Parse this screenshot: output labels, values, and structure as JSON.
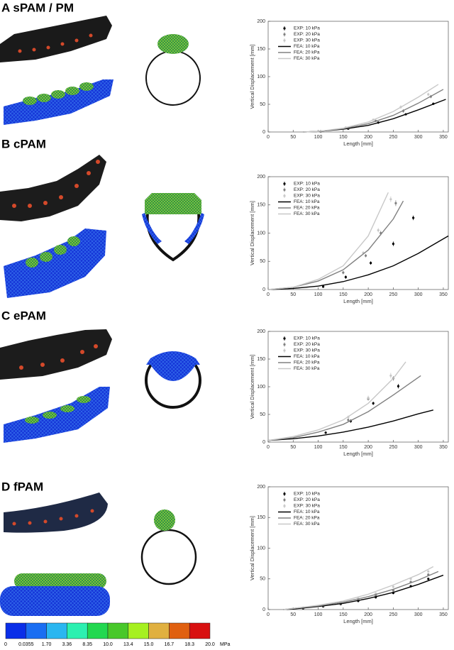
{
  "chart_data": [
    {
      "type": "line",
      "title": "A  sPAM / PM",
      "xlabel": "Length [mm]",
      "ylabel": "Vertical Displacement [mm]",
      "xlim": [
        0,
        360
      ],
      "ylim": [
        0,
        200
      ],
      "xticks": [
        0,
        50,
        100,
        150,
        200,
        250,
        300,
        350
      ],
      "yticks": [
        0,
        50,
        100,
        150,
        200
      ],
      "legend": "upper left",
      "series": [
        {
          "name": "EXP: 10 kPa",
          "color": "#000000",
          "x": [
            105,
            160,
            220,
            275,
            330
          ],
          "values": [
            1,
            6,
            17,
            32,
            51
          ],
          "errors": [
            1,
            1,
            2,
            2,
            2
          ]
        },
        {
          "name": "EXP: 20 kPa",
          "color": "#808080",
          "x": [
            105,
            160,
            215,
            270,
            325
          ],
          "values": [
            1,
            7,
            20,
            38,
            64
          ],
          "errors": [
            1,
            1,
            2,
            3,
            3
          ]
        },
        {
          "name": "EXP: 30 kPa",
          "color": "#c8c8c8",
          "x": [
            100,
            155,
            210,
            265,
            320
          ],
          "values": [
            1,
            8,
            22,
            45,
            68
          ],
          "errors": [
            1,
            1,
            2,
            3,
            3
          ]
        },
        {
          "name": "FEA: 10 kPa",
          "color": "#000000",
          "x": [
            70,
            100,
            150,
            200,
            250,
            300,
            355
          ],
          "values": [
            0,
            1,
            5,
            12,
            24,
            40,
            59
          ]
        },
        {
          "name": "FEA: 20 kPa",
          "color": "#808080",
          "x": [
            70,
            100,
            150,
            200,
            250,
            300,
            350
          ],
          "values": [
            0,
            1,
            6,
            15,
            30,
            52,
            77
          ]
        },
        {
          "name": "FEA: 30 kPa",
          "color": "#c8c8c8",
          "x": [
            70,
            100,
            150,
            200,
            250,
            300,
            340
          ],
          "values": [
            0,
            1,
            7,
            18,
            37,
            63,
            86
          ]
        }
      ]
    },
    {
      "type": "line",
      "title": "B  cPAM",
      "xlabel": "Length [mm]",
      "ylabel": "Vertical Displacement [mm]",
      "xlim": [
        0,
        360
      ],
      "ylim": [
        0,
        200
      ],
      "xticks": [
        0,
        50,
        100,
        150,
        200,
        250,
        300,
        350
      ],
      "yticks": [
        0,
        50,
        100,
        150,
        200
      ],
      "legend": "upper left",
      "series": [
        {
          "name": "EXP: 10 kPa",
          "color": "#000000",
          "x": [
            110,
            155,
            205,
            250,
            290
          ],
          "values": [
            5,
            22,
            47,
            81,
            127
          ],
          "errors": [
            2,
            3,
            3,
            4,
            4
          ]
        },
        {
          "name": "EXP: 20 kPa",
          "color": "#808080",
          "x": [
            150,
            195,
            225,
            255
          ],
          "values": [
            30,
            60,
            100,
            153
          ],
          "errors": [
            3,
            3,
            4,
            5
          ]
        },
        {
          "name": "EXP: 30 kPa",
          "color": "#c8c8c8",
          "x": [
            190,
            220,
            245
          ],
          "values": [
            65,
            105,
            160
          ],
          "errors": [
            3,
            4,
            5
          ]
        },
        {
          "name": "FEA: 10 kPa",
          "color": "#000000",
          "x": [
            0,
            50,
            100,
            150,
            200,
            250,
            300,
            360
          ],
          "values": [
            0,
            2,
            6,
            14,
            26,
            42,
            64,
            95
          ]
        },
        {
          "name": "FEA: 20 kPa",
          "color": "#808080",
          "x": [
            0,
            50,
            100,
            150,
            200,
            250,
            270
          ],
          "values": [
            0,
            4,
            15,
            35,
            70,
            125,
            157
          ]
        },
        {
          "name": "FEA: 30 kPa",
          "color": "#c8c8c8",
          "x": [
            0,
            50,
            100,
            150,
            200,
            240
          ],
          "values": [
            0,
            4,
            18,
            42,
            95,
            172
          ]
        }
      ]
    },
    {
      "type": "line",
      "title": "C  ePAM",
      "xlabel": "Length [mm]",
      "ylabel": "Vertical Displacement [mm]",
      "xlim": [
        0,
        360
      ],
      "ylim": [
        0,
        200
      ],
      "xticks": [
        0,
        50,
        100,
        150,
        200,
        250,
        300,
        350
      ],
      "yticks": [
        0,
        50,
        100,
        150,
        200
      ],
      "legend": "upper left",
      "series": [
        {
          "name": "EXP: 10 kPa",
          "color": "#000000",
          "x": [
            115,
            165,
            210,
            260
          ],
          "values": [
            17,
            38,
            70,
            101
          ],
          "errors": [
            2,
            3,
            3,
            4
          ]
        },
        {
          "name": "EXP: 20 kPa",
          "color": "#808080",
          "x": [
            160,
            200,
            250
          ],
          "values": [
            40,
            78,
            115
          ],
          "errors": [
            3,
            3,
            4
          ]
        },
        {
          "name": "EXP: 30 kPa",
          "color": "#c8c8c8",
          "x": [
            160,
            200,
            245
          ],
          "values": [
            45,
            80,
            120
          ],
          "errors": [
            3,
            4,
            5
          ]
        },
        {
          "name": "FEA: 10 kPa",
          "color": "#000000",
          "x": [
            0,
            50,
            100,
            150,
            200,
            250,
            300,
            330
          ],
          "values": [
            3,
            6,
            11,
            18,
            27,
            38,
            51,
            58
          ]
        },
        {
          "name": "FEA: 20 kPa",
          "color": "#808080",
          "x": [
            0,
            50,
            100,
            150,
            200,
            250,
            305
          ],
          "values": [
            3,
            8,
            18,
            32,
            55,
            85,
            120
          ]
        },
        {
          "name": "FEA: 30 kPa",
          "color": "#c8c8c8",
          "x": [
            0,
            50,
            100,
            150,
            200,
            250,
            275
          ],
          "values": [
            3,
            10,
            22,
            40,
            70,
            115,
            145
          ]
        }
      ]
    },
    {
      "type": "line",
      "title": "D  fPAM",
      "xlabel": "Length [mm]",
      "ylabel": "Vertical Displacement [mm]",
      "xlim": [
        0,
        360
      ],
      "ylim": [
        0,
        200
      ],
      "xticks": [
        0,
        50,
        100,
        150,
        200,
        250,
        300,
        350
      ],
      "yticks": [
        0,
        50,
        100,
        150,
        200
      ],
      "legend": "upper left",
      "series": [
        {
          "name": "EXP: 10 kPa",
          "color": "#000000",
          "x": [
            70,
            110,
            145,
            180,
            215,
            250,
            285,
            320
          ],
          "values": [
            2,
            5,
            9,
            14,
            20,
            27,
            38,
            50
          ],
          "errors": [
            1,
            1,
            1,
            2,
            2,
            2,
            2,
            2
          ]
        },
        {
          "name": "EXP: 20 kPa",
          "color": "#808080",
          "x": [
            70,
            110,
            145,
            180,
            215,
            250,
            285,
            320
          ],
          "values": [
            3,
            6,
            10,
            16,
            23,
            31,
            45,
            57
          ],
          "errors": [
            1,
            1,
            1,
            2,
            2,
            2,
            2,
            2
          ]
        },
        {
          "name": "EXP: 30 kPa",
          "color": "#c8c8c8",
          "x": [
            70,
            110,
            145,
            180,
            215,
            250,
            285,
            320
          ],
          "values": [
            3,
            7,
            12,
            18,
            26,
            37,
            50,
            62
          ],
          "errors": [
            1,
            1,
            1,
            2,
            2,
            2,
            2,
            2
          ]
        },
        {
          "name": "FEA: 10 kPa",
          "color": "#000000",
          "x": [
            30,
            50,
            100,
            150,
            200,
            250,
            300,
            350
          ],
          "values": [
            0,
            1,
            5,
            10,
            18,
            28,
            41,
            56
          ]
        },
        {
          "name": "FEA: 20 kPa",
          "color": "#808080",
          "x": [
            30,
            50,
            100,
            150,
            200,
            250,
            300,
            340
          ],
          "values": [
            0,
            2,
            6,
            12,
            21,
            33,
            48,
            62
          ]
        },
        {
          "name": "FEA: 30 kPa",
          "color": "#c8c8c8",
          "x": [
            30,
            50,
            100,
            150,
            200,
            250,
            300,
            330
          ],
          "values": [
            0,
            2,
            7,
            14,
            25,
            40,
            57,
            70
          ]
        }
      ]
    }
  ],
  "colorbar": {
    "unit": "MPa",
    "colors": [
      "#0a2ee8",
      "#1a6ef2",
      "#2ab6f0",
      "#2cf0b0",
      "#22d850",
      "#48c82a",
      "#a6f020",
      "#e0b040",
      "#e06010",
      "#d81010"
    ],
    "ticks": [
      0,
      0.0355,
      {
        "value": 1.7,
        "label": "1.70"
      },
      3.36,
      8.35,
      {
        "value": 10,
        "label": "10.0"
      },
      13.4,
      {
        "value": 15,
        "label": "15.0"
      },
      16.7,
      18.3,
      {
        "value": 20,
        "label": "20.0"
      }
    ]
  }
}
